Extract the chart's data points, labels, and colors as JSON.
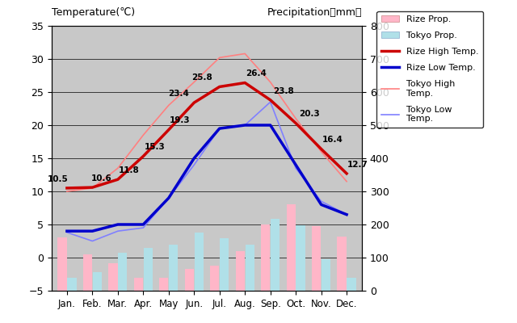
{
  "months": [
    "Jan.",
    "Feb.",
    "Mar.",
    "Apr.",
    "May",
    "Jun.",
    "Jul.",
    "Aug.",
    "Sep.",
    "Oct.",
    "Nov.",
    "Dec."
  ],
  "rize_high_temp": [
    10.5,
    10.6,
    11.8,
    15.3,
    19.3,
    23.4,
    25.8,
    26.4,
    23.8,
    20.3,
    16.4,
    12.7
  ],
  "rize_low_temp": [
    4.0,
    4.0,
    5.0,
    5.0,
    9.0,
    15.0,
    19.5,
    20.0,
    20.0,
    14.0,
    8.0,
    6.5
  ],
  "tokyo_high_temp": [
    10.0,
    10.5,
    13.5,
    18.5,
    23.0,
    26.5,
    30.2,
    30.8,
    26.5,
    21.0,
    16.0,
    11.5
  ],
  "tokyo_low_temp": [
    3.8,
    2.5,
    4.0,
    4.5,
    9.0,
    14.0,
    19.5,
    20.0,
    23.5,
    13.5,
    8.5,
    6.5
  ],
  "rize_precip_mm": [
    161,
    110,
    82,
    40,
    40,
    65,
    75,
    120,
    200,
    260,
    195,
    163
  ],
  "tokyo_precip_mm": [
    40,
    55,
    115,
    130,
    140,
    175,
    158,
    138,
    218,
    197,
    95,
    40
  ],
  "title_left": "Temperature(℃)",
  "title_right": "Precipitation（mm）",
  "bg_color": "#c8c8c8",
  "rize_precip_color": "#ffb6c8",
  "tokyo_precip_color": "#b0e0e8",
  "rize_high_color": "#cc0000",
  "rize_low_color": "#0000cc",
  "tokyo_high_color": "#ff8080",
  "tokyo_low_color": "#8080ff",
  "ylim_temp": [
    -5,
    35
  ],
  "ylim_precip": [
    0,
    800
  ],
  "temp_labels": [
    "10.5",
    "10.6",
    "11.8",
    "15.3",
    "19.3",
    "23.4",
    "25.8",
    "26.4",
    "23.8",
    "20.3",
    "16.4",
    "12.7"
  ],
  "label_dx": [
    -8,
    8,
    10,
    10,
    10,
    -14,
    -16,
    10,
    12,
    12,
    10,
    10
  ],
  "label_dy": [
    6,
    6,
    6,
    6,
    6,
    6,
    6,
    6,
    6,
    6,
    6,
    6
  ]
}
